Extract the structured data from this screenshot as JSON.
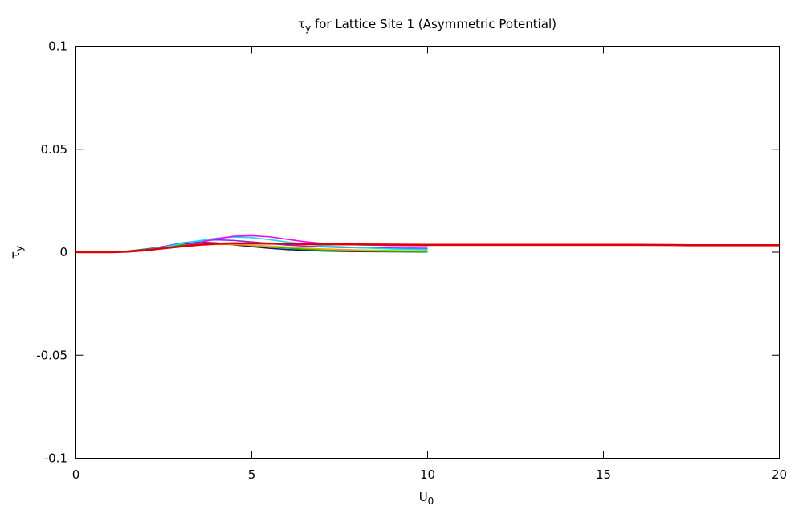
{
  "chart_data": {
    "type": "line",
    "title_main": "τ",
    "title_sub": "y",
    "title_rest": " for Lattice Site 1 (Asymmetric Potential)",
    "xlabel_main": "U",
    "xlabel_sub": "0",
    "ylabel_main": "τ",
    "ylabel_sub": "y",
    "xlim": [
      0,
      20
    ],
    "ylim": [
      -0.1,
      0.1
    ],
    "xticks": [
      0,
      5,
      10,
      15,
      20
    ],
    "xtick_labels": [
      "0",
      "5",
      "10",
      "15",
      "20"
    ],
    "yticks": [
      -0.1,
      -0.05,
      0,
      0.05,
      0.1
    ],
    "ytick_labels": [
      "-0.1",
      "-0.05",
      "0",
      "0.05",
      "0.1"
    ],
    "grid": false,
    "legend": "none",
    "series": [
      {
        "color": "#191970",
        "x": [
          0,
          1,
          1.5,
          2,
          2.5,
          3,
          3.5,
          4,
          4.5,
          5,
          5.5,
          6,
          6.5,
          7,
          8,
          9,
          10
        ],
        "y": [
          0,
          0,
          0.0004,
          0.0012,
          0.0024,
          0.0038,
          0.0048,
          0.0045,
          0.0036,
          0.0027,
          0.0019,
          0.0013,
          0.0009,
          0.0006,
          0.0003,
          0.0002,
          0.0001
        ]
      },
      {
        "color": "#00c000",
        "x": [
          0,
          1,
          1.5,
          2,
          2.5,
          3,
          3.5,
          4,
          4.5,
          5,
          5.5,
          6,
          6.5,
          7,
          8,
          9,
          10
        ],
        "y": [
          0,
          0,
          0.0006,
          0.0016,
          0.0027,
          0.0036,
          0.0041,
          0.0042,
          0.0039,
          0.0033,
          0.0026,
          0.002,
          0.0015,
          0.0011,
          0.0006,
          0.0003,
          0.0002
        ]
      },
      {
        "color": "#ffa500",
        "x": [
          0,
          1,
          1.5,
          2,
          2.5,
          3,
          3.5,
          4,
          4.5,
          5,
          5.5,
          6,
          6.5,
          7,
          8,
          9,
          10
        ],
        "y": [
          0,
          0,
          0.0003,
          0.0011,
          0.0021,
          0.003,
          0.0036,
          0.0038,
          0.0037,
          0.0034,
          0.003,
          0.0025,
          0.002,
          0.0016,
          0.0011,
          0.0008,
          0.0006
        ]
      },
      {
        "color": "#8a2be2",
        "x": [
          0,
          1,
          1.5,
          2,
          2.5,
          3,
          3.5,
          4,
          4.5,
          5,
          5.5,
          6,
          6.5,
          7,
          8,
          9,
          10
        ],
        "y": [
          0,
          0,
          0.0005,
          0.0014,
          0.0028,
          0.0044,
          0.0055,
          0.006,
          0.0057,
          0.005,
          0.0042,
          0.0035,
          0.003,
          0.0026,
          0.0022,
          0.002,
          0.0019
        ]
      },
      {
        "color": "#00e5ee",
        "x": [
          0,
          1,
          1.5,
          2,
          2.5,
          3,
          3.5,
          4,
          4.5,
          5,
          5.5,
          6,
          6.5,
          7,
          8,
          9,
          10
        ],
        "y": [
          0,
          0,
          0.0004,
          0.0012,
          0.0025,
          0.0041,
          0.0056,
          0.0068,
          0.0074,
          0.0071,
          0.0061,
          0.005,
          0.004,
          0.0032,
          0.0022,
          0.0016,
          0.0013
        ]
      },
      {
        "color": "#ff00ff",
        "x": [
          0,
          1,
          1.5,
          2,
          2.5,
          3,
          3.5,
          4,
          4.5,
          5,
          5.5,
          6,
          6.5,
          7,
          7.5,
          8,
          9,
          10
        ],
        "y": [
          0,
          0,
          0.0002,
          0.0008,
          0.0018,
          0.003,
          0.0046,
          0.0065,
          0.0078,
          0.008,
          0.0075,
          0.0063,
          0.0051,
          0.0043,
          0.0039,
          0.0036,
          0.0033,
          0.0032
        ]
      },
      {
        "color": "#e00000",
        "x": [
          0,
          1,
          1.5,
          2,
          2.5,
          3,
          3.5,
          4,
          4.5,
          5,
          5.5,
          6,
          7,
          8,
          9,
          10,
          11,
          12,
          13,
          14,
          15,
          16,
          17,
          17.5,
          18,
          19,
          20
        ],
        "y": [
          0,
          0,
          0.0003,
          0.001,
          0.0019,
          0.0028,
          0.0036,
          0.0041,
          0.0043,
          0.0043,
          0.0042,
          0.0041,
          0.0039,
          0.0038,
          0.0037,
          0.0036,
          0.0036,
          0.0036,
          0.0036,
          0.0036,
          0.0036,
          0.0036,
          0.0035,
          0.0034,
          0.0034,
          0.0034,
          0.0034
        ]
      }
    ]
  }
}
